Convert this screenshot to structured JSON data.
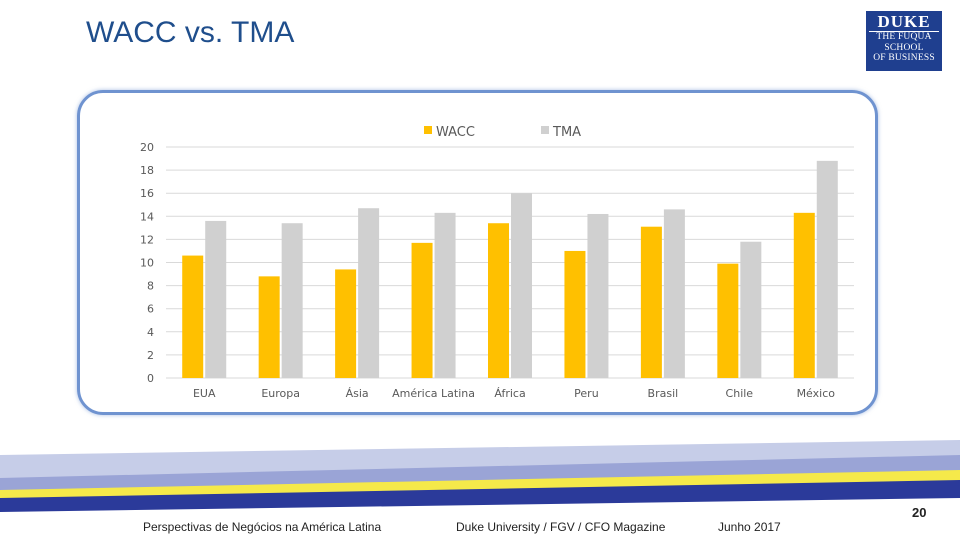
{
  "slide": {
    "title": "WACC vs. TMA",
    "logo": {
      "line1": "DUKE",
      "line2": "THE FUQUA",
      "line3": "SCHOOL",
      "line4": "OF BUSINESS"
    },
    "footer": {
      "left": "Perspectivas de Negócios na América Latina",
      "center": "Duke University / FGV / CFO Magazine",
      "date": "Junho 2017",
      "page": "20"
    }
  },
  "colors": {
    "wacc": "#ffc000",
    "tma": "#d0d0d0",
    "frame": "#6f93d0",
    "title": "#1f4e8c"
  },
  "chart_data": {
    "type": "bar",
    "title": "",
    "xlabel": "",
    "ylabel": "",
    "ylim": [
      0,
      20
    ],
    "yticks": [
      0,
      2,
      4,
      6,
      8,
      10,
      12,
      14,
      16,
      18,
      20
    ],
    "grid": true,
    "legend_position": "top-center",
    "categories": [
      "EUA",
      "Europa",
      "Ásia",
      "América Latina",
      "África",
      "Peru",
      "Brasil",
      "Chile",
      "México"
    ],
    "series": [
      {
        "name": "WACC",
        "color": "#ffc000",
        "values": [
          10.6,
          8.8,
          9.4,
          11.7,
          13.4,
          11.0,
          13.1,
          9.9,
          14.3
        ]
      },
      {
        "name": "TMA",
        "color": "#d0d0d0",
        "values": [
          13.6,
          13.4,
          14.7,
          14.3,
          16.0,
          14.2,
          14.6,
          11.8,
          18.8
        ]
      }
    ]
  }
}
